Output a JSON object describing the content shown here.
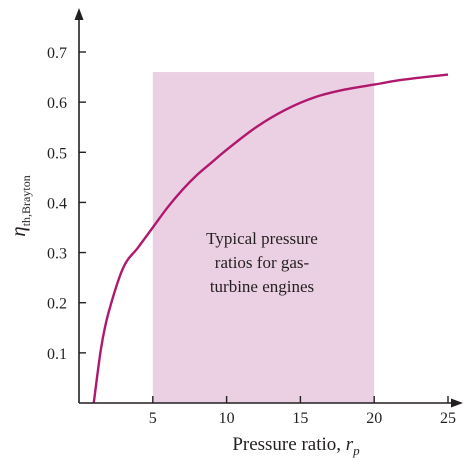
{
  "chart_data": {
    "type": "line",
    "title": "",
    "xlabel": "Pressure ratio, ",
    "xlabel_symbol": "r",
    "xlabel_subscript": "p",
    "ylabel_symbol": "η",
    "ylabel_subscript": "th,Brayton",
    "xlim": [
      0,
      25
    ],
    "ylim": [
      0,
      0.7
    ],
    "x_ticks": [
      5,
      10,
      15,
      20,
      25
    ],
    "y_ticks": [
      0.1,
      0.2,
      0.3,
      0.4,
      0.5,
      0.6,
      0.7
    ],
    "x_tick_labels": [
      "5",
      "10",
      "15",
      "20",
      "25"
    ],
    "y_tick_labels": [
      "0.1",
      "0.2",
      "0.3",
      "0.4",
      "0.5",
      "0.6",
      "0.7"
    ],
    "grid": false,
    "series": [
      {
        "color": "#b0186e",
        "x": [
          1,
          1.5,
          2,
          3,
          4,
          5,
          6,
          7,
          8,
          9,
          10,
          12,
          14,
          16,
          18,
          20,
          22,
          25
        ],
        "y": [
          0.0,
          0.11,
          0.18,
          0.27,
          0.31,
          0.35,
          0.39,
          0.425,
          0.455,
          0.48,
          0.505,
          0.55,
          0.585,
          0.61,
          0.625,
          0.635,
          0.645,
          0.655
        ]
      }
    ],
    "shaded_region": {
      "x_range": [
        5,
        20
      ],
      "y_top": 0.66,
      "color": "#ead0e2",
      "label_lines": [
        "Typical pressure",
        "ratios for gas-",
        "turbine engines"
      ]
    }
  }
}
